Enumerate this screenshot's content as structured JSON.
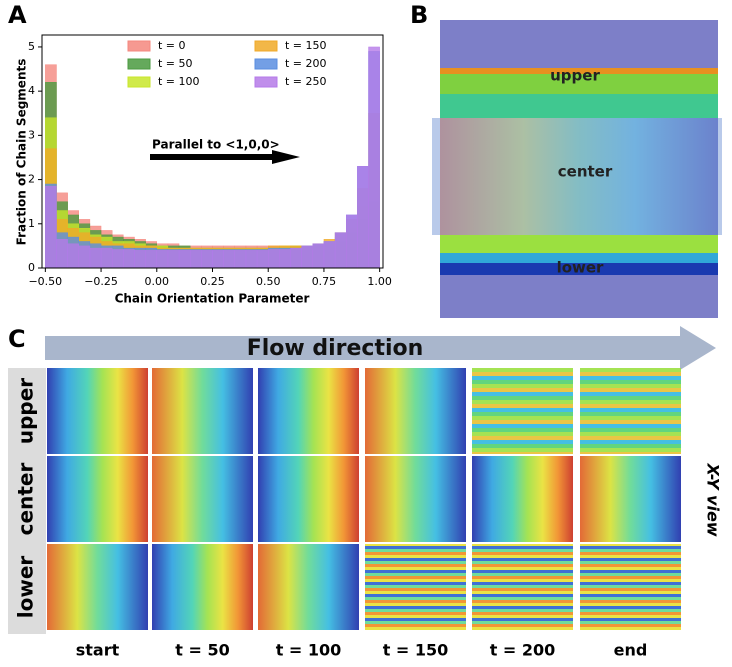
{
  "chart_data": {
    "type": "histogram",
    "x_label": "Chain Orientation Parameter",
    "y_label": "Fraction of Chain Segments",
    "annotation": "Parallel to <1,0,0>",
    "bins": [
      -0.5,
      -0.45,
      -0.4,
      -0.35,
      -0.3,
      -0.25,
      -0.2,
      -0.15,
      -0.1,
      -0.05,
      0,
      0.05,
      0.1,
      0.15,
      0.2,
      0.25,
      0.3,
      0.35,
      0.4,
      0.45,
      0.5,
      0.55,
      0.6,
      0.65,
      0.7,
      0.75,
      0.8,
      0.85,
      0.9,
      0.95,
      1.0
    ],
    "series": [
      {
        "name": "t = 0",
        "color": "#f4877e",
        "values": [
          4.6,
          1.7,
          1.3,
          1.1,
          0.95,
          0.85,
          0.75,
          0.7,
          0.65,
          0.6,
          0.55,
          0.55,
          0.5,
          0.5,
          0.5,
          0.5,
          0.5,
          0.5,
          0.5,
          0.5,
          0.5,
          0.5,
          0.5,
          0.5,
          0.5,
          0.5,
          0.55,
          0.6,
          0.8,
          1.0
        ]
      },
      {
        "name": "t = 50",
        "color": "#4a9a40",
        "values": [
          4.2,
          1.5,
          1.2,
          1.0,
          0.85,
          0.75,
          0.7,
          0.65,
          0.6,
          0.55,
          0.5,
          0.5,
          0.5,
          0.45,
          0.45,
          0.45,
          0.45,
          0.45,
          0.45,
          0.45,
          0.45,
          0.45,
          0.5,
          0.5,
          0.5,
          0.55,
          0.6,
          0.8,
          1.1,
          1.5
        ]
      },
      {
        "name": "t = 100",
        "color": "#c8e62a",
        "values": [
          3.4,
          1.3,
          1.0,
          0.9,
          0.75,
          0.7,
          0.6,
          0.6,
          0.55,
          0.5,
          0.5,
          0.45,
          0.45,
          0.45,
          0.45,
          0.45,
          0.45,
          0.45,
          0.45,
          0.45,
          0.45,
          0.5,
          0.5,
          0.5,
          0.55,
          0.6,
          0.7,
          0.9,
          1.4,
          2.2
        ]
      },
      {
        "name": "t = 150",
        "color": "#f0aa28",
        "values": [
          2.7,
          1.1,
          0.9,
          0.8,
          0.7,
          0.6,
          0.55,
          0.55,
          0.5,
          0.5,
          0.45,
          0.45,
          0.45,
          0.45,
          0.45,
          0.45,
          0.45,
          0.45,
          0.45,
          0.45,
          0.5,
          0.5,
          0.5,
          0.5,
          0.55,
          0.65,
          0.8,
          1.1,
          1.8,
          3.5
        ]
      },
      {
        "name": "t = 200",
        "color": "#5a8ee0",
        "values": [
          1.9,
          0.8,
          0.7,
          0.6,
          0.55,
          0.5,
          0.5,
          0.45,
          0.45,
          0.45,
          0.42,
          0.42,
          0.42,
          0.42,
          0.42,
          0.42,
          0.42,
          0.42,
          0.42,
          0.42,
          0.45,
          0.45,
          0.45,
          0.5,
          0.55,
          0.6,
          0.8,
          1.2,
          2.3,
          4.9
        ]
      },
      {
        "name": "t = 250",
        "color": "#b57ae8",
        "values": [
          1.85,
          0.65,
          0.55,
          0.5,
          0.45,
          0.45,
          0.42,
          0.42,
          0.4,
          0.4,
          0.4,
          0.4,
          0.4,
          0.4,
          0.4,
          0.4,
          0.4,
          0.4,
          0.4,
          0.4,
          0.42,
          0.42,
          0.45,
          0.5,
          0.55,
          0.6,
          0.8,
          1.2,
          2.3,
          5.0
        ]
      }
    ],
    "xlim": [
      -0.515,
      1.015
    ],
    "ylim": [
      0,
      5.27
    ],
    "xticks": [
      {
        "value": -0.5,
        "label": "−0.50"
      },
      {
        "value": -0.25,
        "label": "−0.25"
      },
      {
        "value": 0,
        "label": "0.00"
      },
      {
        "value": 0.25,
        "label": "0.25"
      },
      {
        "value": 0.5,
        "label": "0.50"
      },
      {
        "value": 0.75,
        "label": "0.75"
      },
      {
        "value": 1,
        "label": "1.00"
      }
    ],
    "yticks": [
      0,
      1,
      2,
      3,
      4,
      5
    ],
    "legend": "upper center"
  },
  "panel_labels": [
    "A",
    "B",
    "C"
  ],
  "panel_b": {
    "labels": [
      "upper",
      "center",
      "lower"
    ]
  },
  "panel_c": {
    "title": "Flow direction",
    "rows": [
      "upper",
      "center",
      "lower"
    ],
    "columns": [
      "start",
      "t = 50",
      "t = 100",
      "t = 150",
      "t = 200",
      "end"
    ],
    "view_label": "X-Y view"
  }
}
